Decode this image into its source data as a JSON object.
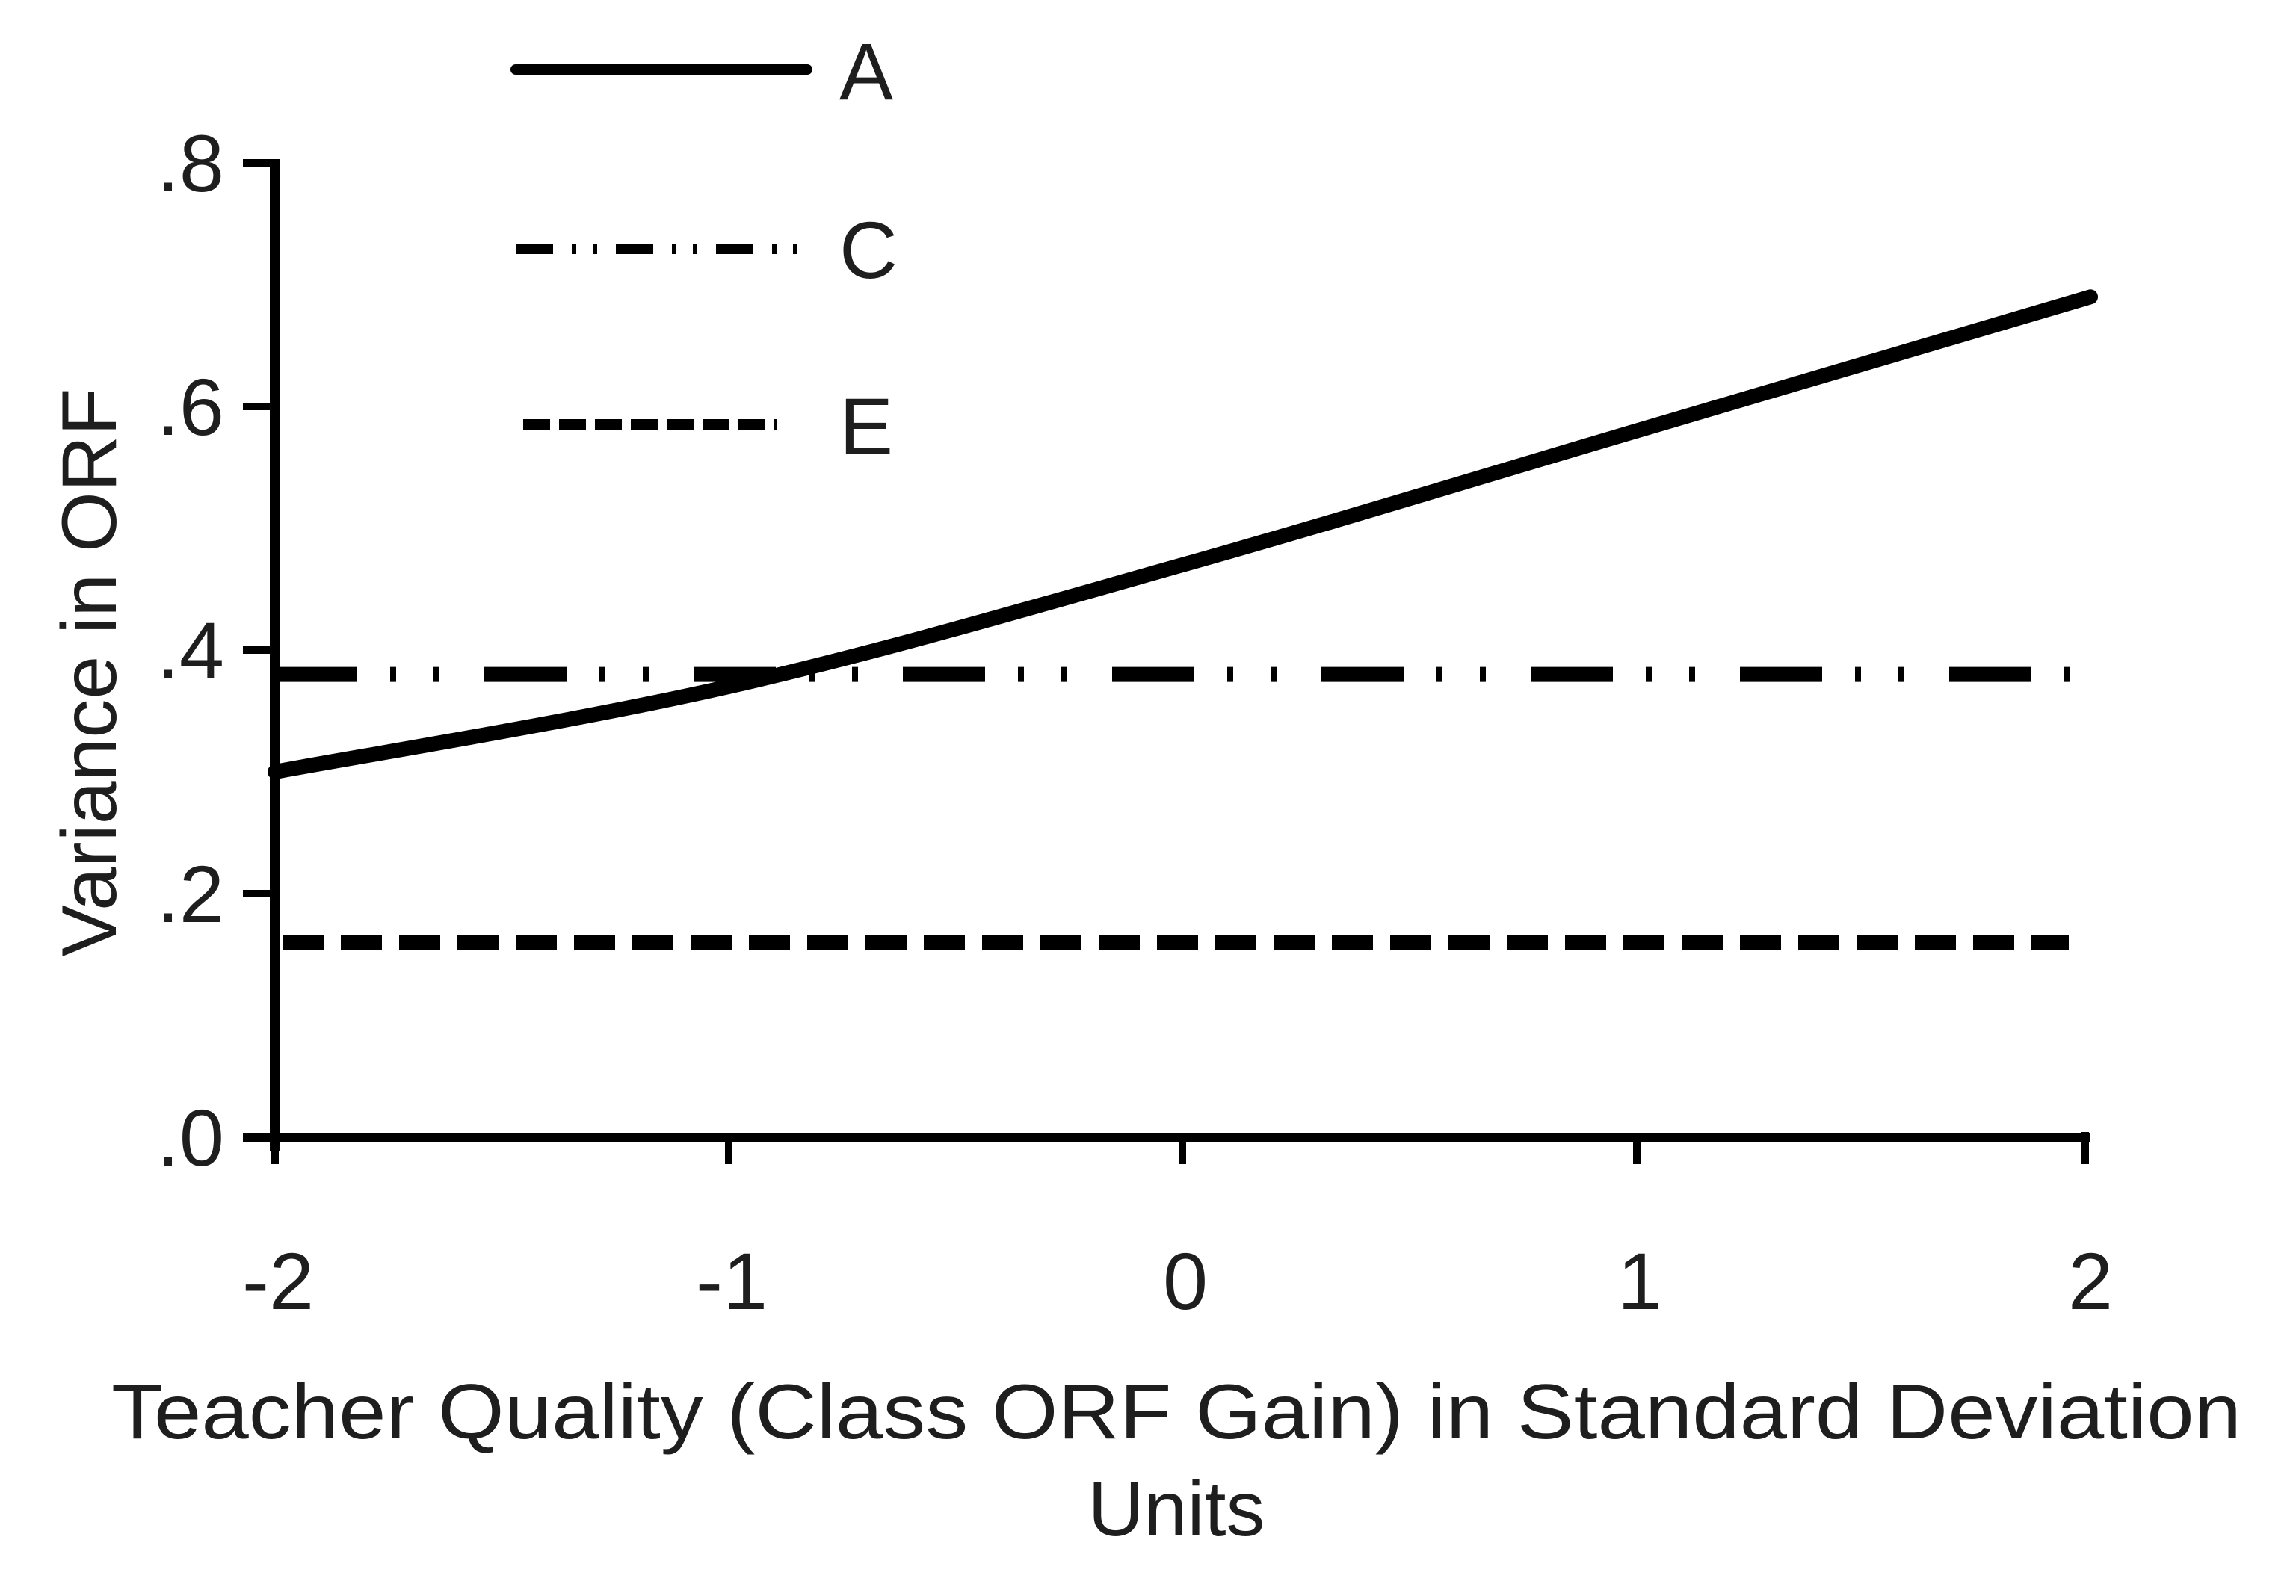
{
  "chart_data": {
    "type": "line",
    "title": "",
    "xlabel": "Teacher Quality (Class ORF Gain) in Standard Deviation Units",
    "xlabel_lines": [
      "Teacher Quality (Class ORF Gain) in Standard Deviation",
      "Units"
    ],
    "ylabel": "Variance in ORF",
    "x": [
      -2,
      -1,
      0,
      1,
      2
    ],
    "xlim": [
      -2,
      2
    ],
    "ylim": [
      0,
      0.8
    ],
    "x_ticks": [
      -2,
      -1,
      0,
      1,
      2
    ],
    "x_tick_labels": [
      "-2",
      "-1",
      "0",
      "1",
      "2"
    ],
    "y_ticks": [
      0,
      0.2,
      0.4,
      0.6,
      0.8
    ],
    "y_tick_labels": [
      ".0",
      ".2",
      ".4",
      ".6",
      ".8"
    ],
    "grid": false,
    "legend_position": "top-left (above plot, outside axes)",
    "series": [
      {
        "name": "A",
        "style": "solid",
        "values": [
          0.3,
          0.37,
          0.47,
          0.58,
          0.69
        ]
      },
      {
        "name": "C",
        "style": "dash-dot-dot",
        "values": [
          0.38,
          0.38,
          0.38,
          0.38,
          0.38
        ]
      },
      {
        "name": "E",
        "style": "dashed",
        "values": [
          0.16,
          0.16,
          0.16,
          0.16,
          0.16
        ]
      }
    ]
  },
  "colors": {
    "line": "#000000",
    "text": "#1e1e1e",
    "background": "#ffffff"
  }
}
